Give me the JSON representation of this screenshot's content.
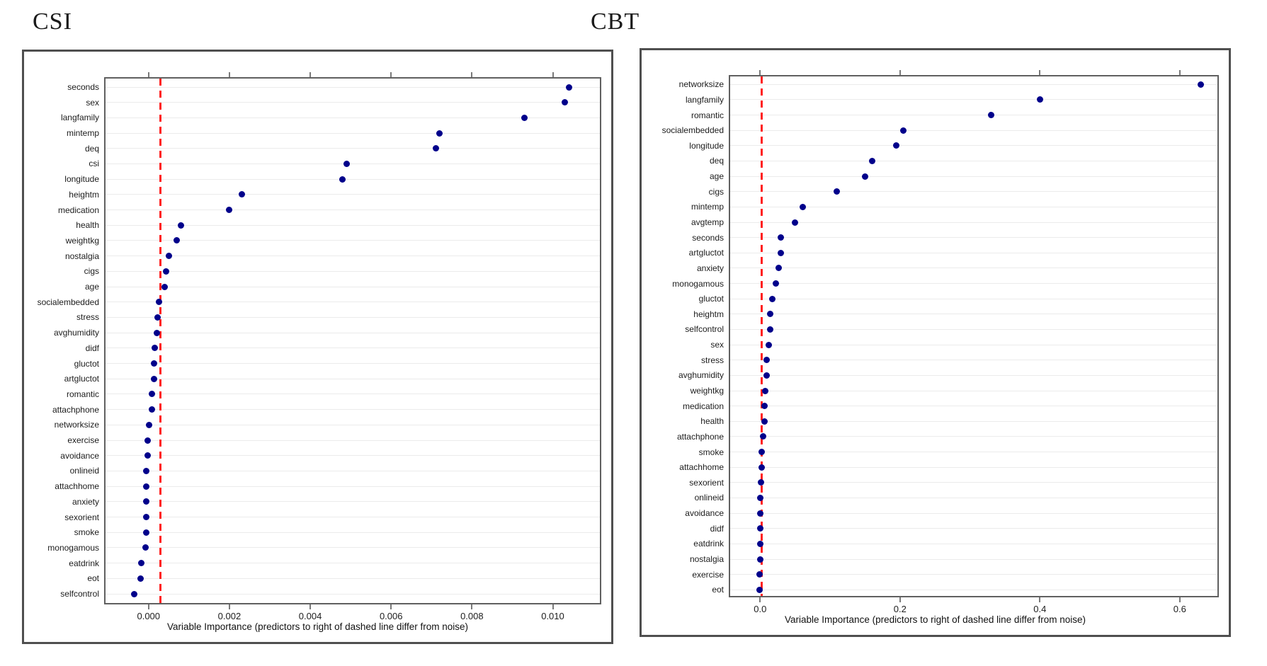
{
  "page": {
    "background": "#ffffff"
  },
  "chart_data": [
    {
      "type": "scatter",
      "title": "CSI",
      "xlabel": "Variable Importance (predictors to right of dashed line differ from noise)",
      "ylabel": "",
      "categories": [
        "seconds",
        "sex",
        "langfamily",
        "mintemp",
        "deq",
        "csi",
        "longitude",
        "heightm",
        "medication",
        "health",
        "weightkg",
        "nostalgia",
        "cigs",
        "age",
        "socialembedded",
        "stress",
        "avghumidity",
        "didf",
        "gluctot",
        "artgluctot",
        "romantic",
        "attachphone",
        "networksize",
        "exercise",
        "avoidance",
        "onlineid",
        "attachhome",
        "anxiety",
        "sexorient",
        "smoke",
        "monogamous",
        "eatdrink",
        "eot",
        "selfcontrol"
      ],
      "values": [
        0.0104,
        0.0103,
        0.0093,
        0.0072,
        0.0071,
        0.0049,
        0.0048,
        0.0023,
        0.002,
        0.0008,
        0.0007,
        0.0005,
        0.00044,
        0.00039,
        0.00026,
        0.00022,
        0.0002,
        0.00016,
        0.00013,
        0.00013,
        9e-05,
        9e-05,
        1e-05,
        -2e-05,
        -2e-05,
        -6e-05,
        -6e-05,
        -6e-05,
        -6e-05,
        -6e-05,
        -8e-05,
        -0.00018,
        -0.00019,
        -0.00035
      ],
      "xlim": [
        -0.0011,
        0.0112
      ],
      "xticks": [
        {
          "value": 0.0,
          "label": "0.000"
        },
        {
          "value": 0.002,
          "label": "0.002"
        },
        {
          "value": 0.004,
          "label": "0.004"
        },
        {
          "value": 0.006,
          "label": "0.006"
        },
        {
          "value": 0.008,
          "label": "0.008"
        },
        {
          "value": 0.01,
          "label": "0.010"
        }
      ],
      "ref_line": {
        "value": 0.0003,
        "color": "#ff2020",
        "style": "dashed"
      },
      "dot_color": "#00008B",
      "grid": true,
      "grid_color": "#ebebeb"
    },
    {
      "type": "scatter",
      "title": "CBT",
      "xlabel": "Variable Importance (predictors to right of dashed line differ from noise)",
      "ylabel": "",
      "categories": [
        "networksize",
        "langfamily",
        "romantic",
        "socialembedded",
        "longitude",
        "deq",
        "age",
        "cigs",
        "mintemp",
        "avgtemp",
        "seconds",
        "artgluctot",
        "anxiety",
        "monogamous",
        "gluctot",
        "heightm",
        "selfcontrol",
        "sex",
        "stress",
        "avghumidity",
        "weightkg",
        "medication",
        "health",
        "attachphone",
        "smoke",
        "attachhome",
        "sexorient",
        "onlineid",
        "avoidance",
        "didf",
        "eatdrink",
        "nostalgia",
        "exercise",
        "eot"
      ],
      "values": [
        0.63,
        0.4,
        0.33,
        0.205,
        0.195,
        0.16,
        0.15,
        0.11,
        0.061,
        0.05,
        0.03,
        0.03,
        0.026,
        0.022,
        0.017,
        0.0142,
        0.0142,
        0.0125,
        0.0095,
        0.0095,
        0.0075,
        0.0058,
        0.0058,
        0.0045,
        0.0022,
        0.0022,
        0.0007,
        0.0,
        0.0,
        0.0,
        0.0,
        0.0,
        -0.0005,
        -0.0005
      ],
      "xlim": [
        -0.0449,
        0.6559
      ],
      "xticks": [
        {
          "value": 0.0,
          "label": "0.0"
        },
        {
          "value": 0.2,
          "label": "0.2"
        },
        {
          "value": 0.4,
          "label": "0.4"
        },
        {
          "value": 0.6,
          "label": "0.6"
        }
      ],
      "ref_line": {
        "value": 0.002,
        "color": "#ff2020",
        "style": "dashed"
      },
      "dot_color": "#00008B",
      "grid": true,
      "grid_color": "#ebebeb"
    }
  ]
}
